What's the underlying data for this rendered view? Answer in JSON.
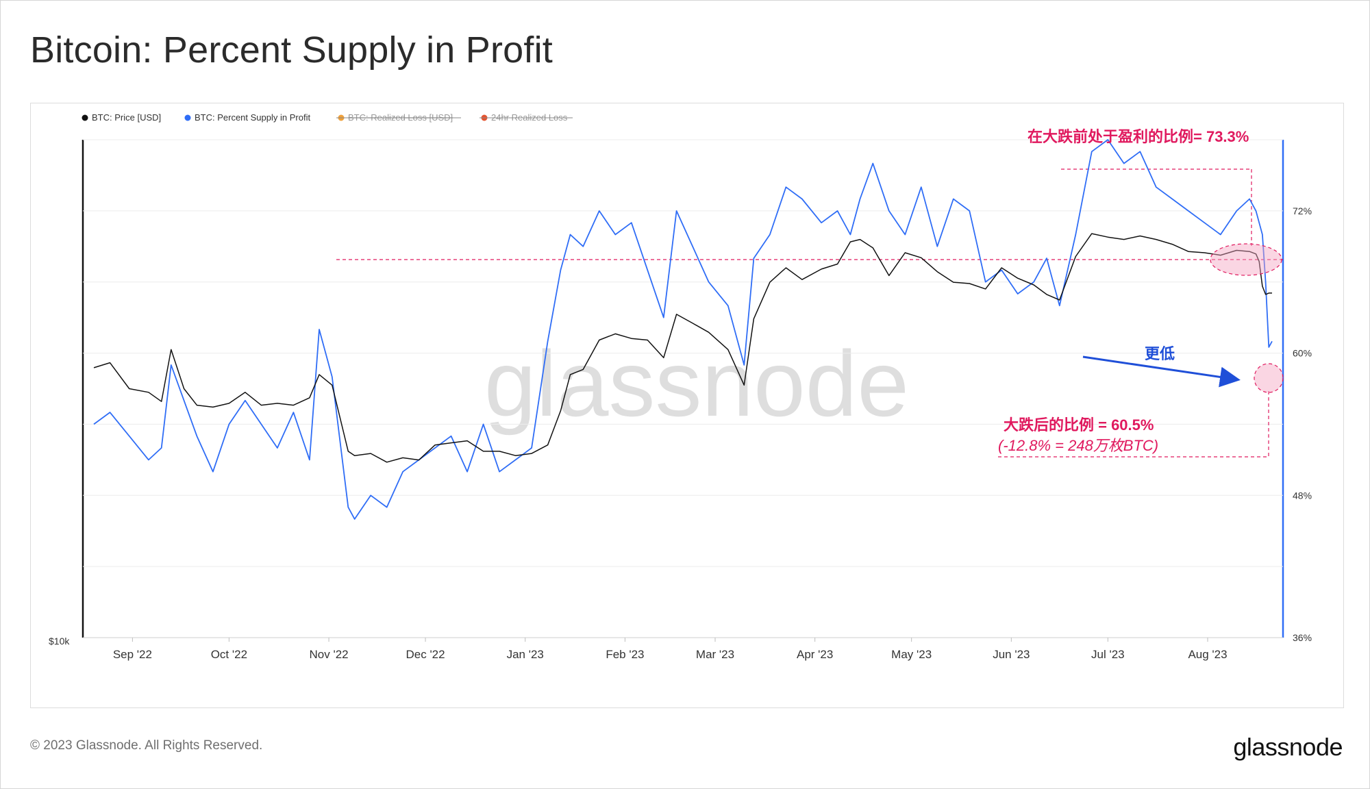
{
  "title": "Bitcoin: Percent Supply in Profit",
  "footer": {
    "copyright": "© 2023 Glassnode. All Rights Reserved.",
    "logo": "glassnode"
  },
  "watermark": "glassnode",
  "colors": {
    "price": "#111111",
    "supply": "#2f6df6",
    "realized_loss": "#f0a13a",
    "loss24h": "#e5532f",
    "annotation": "#e0195e",
    "arrow": "#1f4fd8"
  },
  "chart_data": {
    "type": "line",
    "legend": [
      {
        "label": "BTC: Price [USD]",
        "color": "#111111",
        "active": true
      },
      {
        "label": "BTC: Percent Supply in Profit",
        "color": "#2f6df6",
        "active": true
      },
      {
        "label": "BTC: Realized Loss [USD]",
        "color": "#f0a13a",
        "active": false
      },
      {
        "label": "24hr Realized Loss",
        "color": "#e5532f",
        "active": false
      }
    ],
    "x_ticks": [
      "Sep '22",
      "Oct '22",
      "Nov '22",
      "Dec '22",
      "Jan '23",
      "Feb '23",
      "Mar '23",
      "Apr '23",
      "May '23",
      "Jun '23",
      "Jul '23",
      "Aug '23"
    ],
    "x_range": [
      "2022-08-20",
      "2023-08-21"
    ],
    "left_axis": {
      "label": "$10k",
      "scale": "log",
      "range": [
        10000,
        40000
      ]
    },
    "right_axis": {
      "ticks": [
        "36%",
        "48%",
        "60%",
        "72%"
      ],
      "range": [
        36,
        78
      ]
    },
    "series": [
      {
        "name": "BTC: Percent Supply in Profit",
        "axis": "right",
        "unit": "%",
        "x": [
          "2022-08-20",
          "2022-08-25",
          "2022-08-31",
          "2022-09-06",
          "2022-09-10",
          "2022-09-13",
          "2022-09-17",
          "2022-09-21",
          "2022-09-26",
          "2022-10-01",
          "2022-10-06",
          "2022-10-11",
          "2022-10-16",
          "2022-10-21",
          "2022-10-26",
          "2022-10-29",
          "2022-11-02",
          "2022-11-07",
          "2022-11-09",
          "2022-11-14",
          "2022-11-19",
          "2022-11-24",
          "2022-11-29",
          "2022-12-04",
          "2022-12-09",
          "2022-12-14",
          "2022-12-19",
          "2022-12-24",
          "2022-12-29",
          "2023-01-03",
          "2023-01-08",
          "2023-01-12",
          "2023-01-15",
          "2023-01-19",
          "2023-01-24",
          "2023-01-29",
          "2023-02-03",
          "2023-02-08",
          "2023-02-13",
          "2023-02-17",
          "2023-02-22",
          "2023-02-27",
          "2023-03-05",
          "2023-03-10",
          "2023-03-13",
          "2023-03-18",
          "2023-03-23",
          "2023-03-28",
          "2023-04-03",
          "2023-04-08",
          "2023-04-12",
          "2023-04-15",
          "2023-04-19",
          "2023-04-24",
          "2023-04-29",
          "2023-05-04",
          "2023-05-09",
          "2023-05-14",
          "2023-05-19",
          "2023-05-24",
          "2023-05-29",
          "2023-06-03",
          "2023-06-08",
          "2023-06-12",
          "2023-06-16",
          "2023-06-21",
          "2023-06-26",
          "2023-07-01",
          "2023-07-06",
          "2023-07-11",
          "2023-07-16",
          "2023-07-21",
          "2023-07-26",
          "2023-07-31",
          "2023-08-05",
          "2023-08-10",
          "2023-08-14",
          "2023-08-16",
          "2023-08-17",
          "2023-08-18",
          "2023-08-19",
          "2023-08-20",
          "2023-08-21"
        ],
        "y": [
          54,
          55,
          53,
          51,
          52,
          59,
          56,
          53,
          50,
          54,
          56,
          54,
          52,
          55,
          51,
          62,
          58,
          47,
          46,
          48,
          47,
          50,
          51,
          52,
          53,
          50,
          54,
          50,
          51,
          52,
          61,
          67,
          70,
          69,
          72,
          70,
          71,
          67,
          63,
          72,
          69,
          66,
          64,
          59,
          68,
          70,
          74,
          73,
          71,
          72,
          70,
          73,
          76,
          72,
          70,
          74,
          69,
          73,
          72,
          66,
          67,
          65,
          66,
          68,
          64,
          70,
          77,
          78,
          76,
          77,
          74,
          73,
          72,
          71,
          70,
          72,
          73,
          72,
          71,
          70,
          66,
          60.5,
          61
        ]
      },
      {
        "name": "BTC: Price [USD]",
        "axis": "left",
        "unit": "USD",
        "x": [
          "2022-08-20",
          "2022-08-25",
          "2022-08-31",
          "2022-09-06",
          "2022-09-10",
          "2022-09-13",
          "2022-09-17",
          "2022-09-21",
          "2022-09-26",
          "2022-10-01",
          "2022-10-06",
          "2022-10-11",
          "2022-10-16",
          "2022-10-21",
          "2022-10-26",
          "2022-10-29",
          "2022-11-02",
          "2022-11-07",
          "2022-11-09",
          "2022-11-14",
          "2022-11-19",
          "2022-11-24",
          "2022-11-29",
          "2022-12-04",
          "2022-12-09",
          "2022-12-14",
          "2022-12-19",
          "2022-12-24",
          "2022-12-29",
          "2023-01-03",
          "2023-01-08",
          "2023-01-12",
          "2023-01-15",
          "2023-01-19",
          "2023-01-24",
          "2023-01-29",
          "2023-02-03",
          "2023-02-08",
          "2023-02-13",
          "2023-02-17",
          "2023-02-22",
          "2023-02-27",
          "2023-03-05",
          "2023-03-10",
          "2023-03-13",
          "2023-03-18",
          "2023-03-23",
          "2023-03-28",
          "2023-04-03",
          "2023-04-08",
          "2023-04-12",
          "2023-04-15",
          "2023-04-19",
          "2023-04-24",
          "2023-04-29",
          "2023-05-04",
          "2023-05-09",
          "2023-05-14",
          "2023-05-19",
          "2023-05-24",
          "2023-05-29",
          "2023-06-03",
          "2023-06-08",
          "2023-06-12",
          "2023-06-16",
          "2023-06-21",
          "2023-06-26",
          "2023-07-01",
          "2023-07-06",
          "2023-07-11",
          "2023-07-16",
          "2023-07-21",
          "2023-07-26",
          "2023-07-31",
          "2023-08-05",
          "2023-08-10",
          "2023-08-14",
          "2023-08-16",
          "2023-08-17",
          "2023-08-18",
          "2023-08-19",
          "2023-08-20",
          "2023-08-21"
        ],
        "y": [
          21200,
          21500,
          20000,
          19800,
          19300,
          22300,
          20000,
          19100,
          19000,
          19200,
          19800,
          19100,
          19200,
          19100,
          19500,
          20800,
          20200,
          16800,
          16600,
          16700,
          16300,
          16500,
          16400,
          17100,
          17200,
          17300,
          16800,
          16800,
          16600,
          16700,
          17100,
          18800,
          20800,
          21100,
          22900,
          23300,
          23000,
          22900,
          21800,
          24600,
          24000,
          23400,
          22300,
          20200,
          24300,
          26900,
          28000,
          27100,
          27900,
          28300,
          30100,
          30300,
          29600,
          27400,
          29200,
          28800,
          27700,
          26900,
          26800,
          26400,
          28000,
          27200,
          26700,
          26000,
          25600,
          28900,
          30800,
          30500,
          30300,
          30600,
          30300,
          29900,
          29300,
          29200,
          29000,
          29400,
          29300,
          29100,
          28500,
          26600,
          26000,
          26100,
          26100
        ]
      }
    ],
    "annotations": [
      {
        "text": "在大跌前处于盈利的比例= 73.3%",
        "value": 73.3,
        "date": "2023-08-15"
      },
      {
        "text": "更低"
      },
      {
        "text": "大跌后的比例 = 60.5%",
        "value": 60.5,
        "date": "2023-08-18"
      },
      {
        "text": "(-12.8% = 248万枚BTC)"
      }
    ]
  }
}
